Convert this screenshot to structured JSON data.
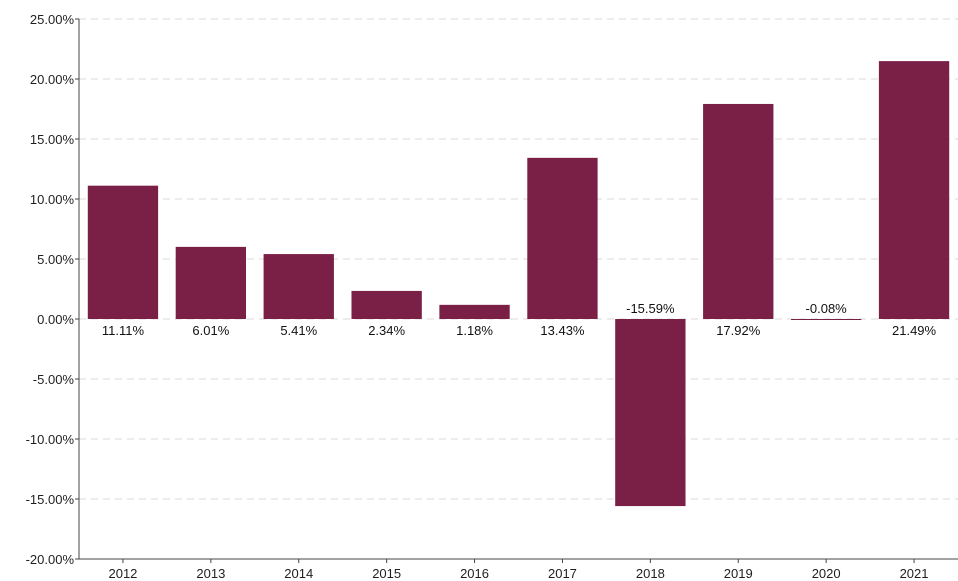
{
  "chart_data": {
    "type": "bar",
    "title": "",
    "xlabel": "",
    "ylabel": "",
    "categories": [
      "2012",
      "2013",
      "2014",
      "2015",
      "2016",
      "2017",
      "2018",
      "2019",
      "2020",
      "2021"
    ],
    "values": [
      11.11,
      6.01,
      5.41,
      2.34,
      1.18,
      13.43,
      -15.59,
      17.92,
      -0.08,
      21.49
    ],
    "data_labels": [
      "11.11%",
      "6.01%",
      "5.41%",
      "2.34%",
      "1.18%",
      "13.43%",
      "-15.59%",
      "17.92%",
      "-0.08%",
      "21.49%"
    ],
    "ylim": [
      -20,
      25
    ],
    "yticks": [
      25,
      20,
      15,
      10,
      5,
      0,
      -5,
      -10,
      -15,
      -20
    ],
    "ytick_labels": [
      "25.00%",
      "20.00%",
      "15.00%",
      "10.00%",
      "5.00%",
      "0.00%",
      "-5.00%",
      "-10.00%",
      "-15.00%",
      "-20.00%"
    ],
    "grid": "horizontal dashed",
    "legend": "none",
    "colors": {
      "bar": "#7a1f45",
      "grid": "#d9d9d9",
      "axis": "#444444"
    }
  }
}
